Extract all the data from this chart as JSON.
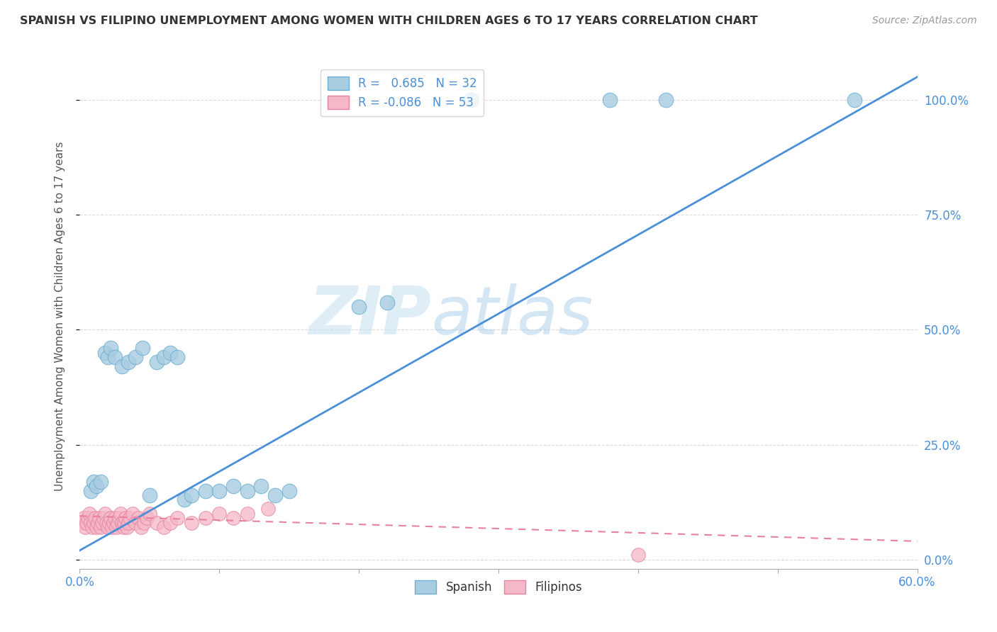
{
  "title": "SPANISH VS FILIPINO UNEMPLOYMENT AMONG WOMEN WITH CHILDREN AGES 6 TO 17 YEARS CORRELATION CHART",
  "source": "Source: ZipAtlas.com",
  "ylabel": "Unemployment Among Women with Children Ages 6 to 17 years",
  "xlim": [
    0.0,
    0.6
  ],
  "ylim": [
    -0.02,
    1.08
  ],
  "y_ticks_right": [
    0.0,
    0.25,
    0.5,
    0.75,
    1.0
  ],
  "y_tick_labels_right": [
    "0.0%",
    "25.0%",
    "50.0%",
    "75.0%",
    "100.0%"
  ],
  "x_tick_labels_show": [
    "0.0%",
    "60.0%"
  ],
  "x_tick_positions_show": [
    0.0,
    0.6
  ],
  "spanish_R": 0.685,
  "spanish_N": 32,
  "filipino_R": -0.086,
  "filipino_N": 53,
  "spanish_color": "#a8cce0",
  "spanish_edge_color": "#6aafd4",
  "filipino_color": "#f4b8c8",
  "filipino_edge_color": "#e8819e",
  "spanish_line_color": "#4a90d9",
  "filipino_line_color": "#e8819e",
  "legend_R_color": "#4a90d9",
  "watermark_color": "#d0e8f5",
  "background_color": "#ffffff",
  "grid_color": "#cccccc",
  "spanish_x": [
    0.008,
    0.01,
    0.012,
    0.015,
    0.018,
    0.02,
    0.022,
    0.025,
    0.03,
    0.035,
    0.04,
    0.045,
    0.05,
    0.055,
    0.06,
    0.065,
    0.07,
    0.075,
    0.08,
    0.09,
    0.1,
    0.11,
    0.12,
    0.13,
    0.14,
    0.15,
    0.2,
    0.22,
    0.28,
    0.38,
    0.42,
    0.555
  ],
  "spanish_y": [
    0.15,
    0.17,
    0.16,
    0.17,
    0.45,
    0.44,
    0.46,
    0.44,
    0.42,
    0.43,
    0.44,
    0.46,
    0.14,
    0.43,
    0.44,
    0.45,
    0.44,
    0.13,
    0.14,
    0.15,
    0.15,
    0.16,
    0.15,
    0.16,
    0.14,
    0.15,
    0.55,
    0.56,
    1.0,
    1.0,
    1.0,
    1.0
  ],
  "filipino_x": [
    0.002,
    0.003,
    0.004,
    0.005,
    0.006,
    0.007,
    0.008,
    0.009,
    0.01,
    0.011,
    0.012,
    0.013,
    0.014,
    0.015,
    0.016,
    0.017,
    0.018,
    0.019,
    0.02,
    0.021,
    0.022,
    0.023,
    0.024,
    0.025,
    0.026,
    0.027,
    0.028,
    0.029,
    0.03,
    0.031,
    0.032,
    0.033,
    0.034,
    0.035,
    0.036,
    0.038,
    0.04,
    0.042,
    0.044,
    0.046,
    0.048,
    0.05,
    0.055,
    0.06,
    0.065,
    0.07,
    0.08,
    0.09,
    0.1,
    0.11,
    0.12,
    0.135,
    0.4
  ],
  "filipino_y": [
    0.08,
    0.09,
    0.07,
    0.08,
    0.09,
    0.1,
    0.08,
    0.07,
    0.08,
    0.09,
    0.07,
    0.08,
    0.09,
    0.07,
    0.08,
    0.09,
    0.1,
    0.08,
    0.07,
    0.08,
    0.09,
    0.07,
    0.08,
    0.09,
    0.07,
    0.08,
    0.09,
    0.1,
    0.08,
    0.07,
    0.08,
    0.09,
    0.07,
    0.08,
    0.09,
    0.1,
    0.08,
    0.09,
    0.07,
    0.08,
    0.09,
    0.1,
    0.08,
    0.07,
    0.08,
    0.09,
    0.08,
    0.09,
    0.1,
    0.09,
    0.1,
    0.11,
    0.01
  ],
  "spanish_line_x": [
    0.0,
    0.6
  ],
  "spanish_line_y": [
    0.02,
    1.05
  ],
  "filipino_line_x": [
    0.0,
    0.6
  ],
  "filipino_line_y": [
    0.095,
    0.04
  ]
}
